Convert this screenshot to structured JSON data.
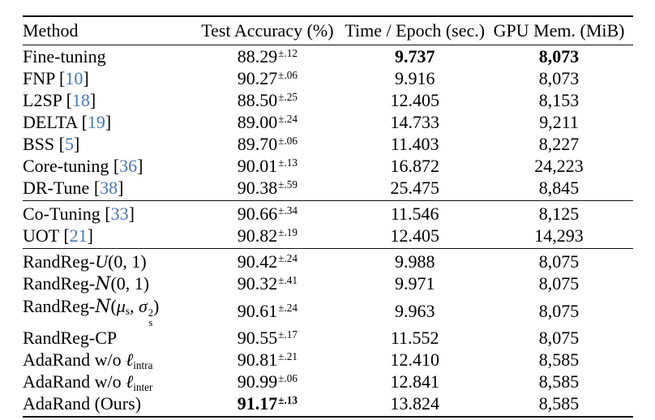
{
  "page": {
    "background": "#ffffff"
  },
  "table": {
    "colors": {
      "text": "#000000",
      "rule": "#111111",
      "citation": "#4677b8"
    },
    "columns": [
      {
        "key": "method",
        "label": "Method",
        "align": "left"
      },
      {
        "key": "test-accuracy",
        "label": "Test Accuracy (%)",
        "align": "center"
      },
      {
        "key": "time-per-epoch",
        "label": "Time / Epoch (sec.)",
        "align": "center"
      },
      {
        "key": "gpu-memory",
        "label": "GPU Mem. (MiB)",
        "align": "center"
      }
    ],
    "groups": [
      {
        "rows": [
          {
            "method": [
              {
                "t": "Fine-tuning"
              }
            ],
            "acc": {
              "value": "88.29",
              "sup": "±.12",
              "bold": false
            },
            "time": {
              "value": "9.737",
              "bold": true
            },
            "mem": {
              "value": "8,073",
              "bold": true
            }
          },
          {
            "method": [
              {
                "t": "FNP ["
              },
              {
                "t": "10",
                "s": "cite"
              },
              {
                "t": "]"
              }
            ],
            "acc": {
              "value": "90.27",
              "sup": "±.06",
              "bold": false
            },
            "time": {
              "value": "9.916",
              "bold": false
            },
            "mem": {
              "value": "8,073",
              "bold": false
            }
          },
          {
            "method": [
              {
                "t": "L2SP ["
              },
              {
                "t": "18",
                "s": "cite"
              },
              {
                "t": "]"
              }
            ],
            "acc": {
              "value": "88.50",
              "sup": "±.25",
              "bold": false
            },
            "time": {
              "value": "12.405",
              "bold": false
            },
            "mem": {
              "value": "8,153",
              "bold": false
            }
          },
          {
            "method": [
              {
                "t": "DELTA ["
              },
              {
                "t": "19",
                "s": "cite"
              },
              {
                "t": "]"
              }
            ],
            "acc": {
              "value": "89.00",
              "sup": "±.24",
              "bold": false
            },
            "time": {
              "value": "14.733",
              "bold": false
            },
            "mem": {
              "value": "9,211",
              "bold": false
            }
          },
          {
            "method": [
              {
                "t": "BSS ["
              },
              {
                "t": "5",
                "s": "cite"
              },
              {
                "t": "]"
              }
            ],
            "acc": {
              "value": "89.70",
              "sup": "±.06",
              "bold": false
            },
            "time": {
              "value": "11.403",
              "bold": false
            },
            "mem": {
              "value": "8,227",
              "bold": false
            }
          },
          {
            "method": [
              {
                "t": "Core-tuning ["
              },
              {
                "t": "36",
                "s": "cite"
              },
              {
                "t": "]"
              }
            ],
            "acc": {
              "value": "90.01",
              "sup": "±.13",
              "bold": false
            },
            "time": {
              "value": "16.872",
              "bold": false
            },
            "mem": {
              "value": "24,223",
              "bold": false
            }
          },
          {
            "method": [
              {
                "t": "DR-Tune ["
              },
              {
                "t": "38",
                "s": "cite"
              },
              {
                "t": "]"
              }
            ],
            "acc": {
              "value": "90.38",
              "sup": "±.59",
              "bold": false
            },
            "time": {
              "value": "25.475",
              "bold": false
            },
            "mem": {
              "value": "8,845",
              "bold": false
            }
          }
        ]
      },
      {
        "rows": [
          {
            "method": [
              {
                "t": "Co-Tuning ["
              },
              {
                "t": "33",
                "s": "cite"
              },
              {
                "t": "]"
              }
            ],
            "acc": {
              "value": "90.66",
              "sup": "±.34",
              "bold": false
            },
            "time": {
              "value": "11.546",
              "bold": false
            },
            "mem": {
              "value": "8,125",
              "bold": false
            }
          },
          {
            "method": [
              {
                "t": "UOT ["
              },
              {
                "t": "21",
                "s": "cite"
              },
              {
                "t": "]"
              }
            ],
            "acc": {
              "value": "90.82",
              "sup": "±.19",
              "bold": false
            },
            "time": {
              "value": "12.405",
              "bold": false
            },
            "mem": {
              "value": "14,293",
              "bold": false
            }
          }
        ]
      },
      {
        "rows": [
          {
            "method": [
              {
                "t": "RandReg-"
              },
              {
                "t": "U",
                "s": "mathit"
              },
              {
                "t": "(0, 1)"
              }
            ],
            "acc": {
              "value": "90.42",
              "sup": "±.24",
              "bold": false
            },
            "time": {
              "value": "9.988",
              "bold": false
            },
            "mem": {
              "value": "8,075",
              "bold": false
            }
          },
          {
            "method": [
              {
                "t": "RandReg-"
              },
              {
                "t": "N",
                "s": "mathcal"
              },
              {
                "t": "(0, 1)"
              }
            ],
            "acc": {
              "value": "90.32",
              "sup": "±.41",
              "bold": false
            },
            "time": {
              "value": "9.971",
              "bold": false
            },
            "mem": {
              "value": "8,075",
              "bold": false
            }
          },
          {
            "method": [
              {
                "t": "RandReg-"
              },
              {
                "t": "N",
                "s": "mathcal"
              },
              {
                "t": "("
              },
              {
                "t": "μ",
                "s": "mathit"
              },
              {
                "t": "s",
                "s": "sub"
              },
              {
                "t": ", "
              },
              {
                "t": "σ",
                "s": "mathit"
              },
              {
                "s": "stack",
                "sup": "2",
                "sub": "s"
              },
              {
                "t": ")"
              }
            ],
            "acc": {
              "value": "90.61",
              "sup": "±.24",
              "bold": false
            },
            "time": {
              "value": "9.963",
              "bold": false
            },
            "mem": {
              "value": "8,075",
              "bold": false
            }
          },
          {
            "method": [
              {
                "t": "RandReg-CP"
              }
            ],
            "acc": {
              "value": "90.55",
              "sup": "±.17",
              "bold": false
            },
            "time": {
              "value": "11.552",
              "bold": false
            },
            "mem": {
              "value": "8,075",
              "bold": false
            }
          },
          {
            "method": [
              {
                "t": "AdaRand w/o "
              },
              {
                "t": "ℓ",
                "s": "mathit"
              },
              {
                "t": "intra",
                "s": "sub"
              }
            ],
            "acc": {
              "value": "90.81",
              "sup": "±.21",
              "bold": false
            },
            "time": {
              "value": "12.410",
              "bold": false
            },
            "mem": {
              "value": "8,585",
              "bold": false
            }
          },
          {
            "method": [
              {
                "t": "AdaRand w/o "
              },
              {
                "t": "ℓ",
                "s": "mathit"
              },
              {
                "t": "inter",
                "s": "sub"
              }
            ],
            "acc": {
              "value": "90.99",
              "sup": "±.06",
              "bold": false
            },
            "time": {
              "value": "12.841",
              "bold": false
            },
            "mem": {
              "value": "8,585",
              "bold": false
            }
          },
          {
            "method": [
              {
                "t": "AdaRand (Ours)"
              }
            ],
            "acc": {
              "value": "91.17",
              "sup": "±.13",
              "bold": true
            },
            "time": {
              "value": "13.824",
              "bold": false
            },
            "mem": {
              "value": "8,585",
              "bold": false
            }
          }
        ]
      }
    ]
  }
}
